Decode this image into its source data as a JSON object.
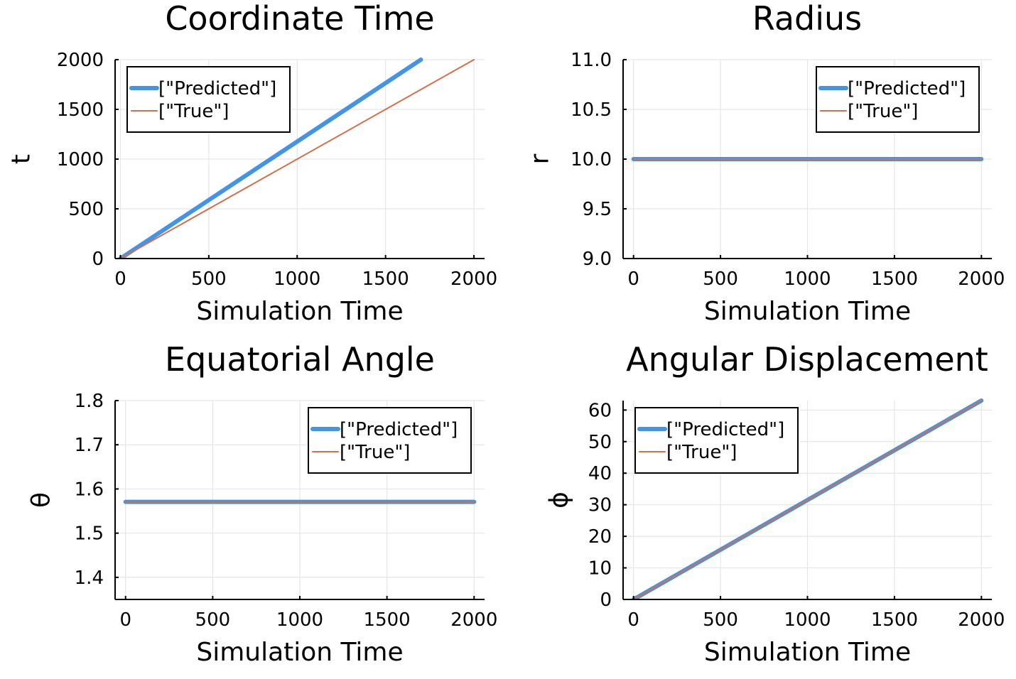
{
  "chart_data": [
    {
      "type": "line",
      "title": "Coordinate Time",
      "xlabel": "Simulation Time",
      "ylabel": "t",
      "xlim": [
        -30,
        2060
      ],
      "ylim": [
        0,
        2000
      ],
      "xticks": [
        0,
        500,
        1000,
        1500,
        2000
      ],
      "xtick_labels": [
        "0",
        "500",
        "1000",
        "1500",
        "2000"
      ],
      "yticks": [
        0,
        500,
        1000,
        1500,
        2000
      ],
      "ytick_labels": [
        "0",
        "500",
        "1000",
        "1500",
        "2000"
      ],
      "grid": true,
      "legend": "top-left",
      "series": [
        {
          "name": "[\"Predicted\"]",
          "color": "#4393e8",
          "width": "thick",
          "x": [
            0,
            1700
          ],
          "y": [
            0,
            2000
          ]
        },
        {
          "name": "[\"True\"]",
          "color": "#d2704a",
          "width": "thin",
          "x": [
            0,
            2000
          ],
          "y": [
            0,
            2000
          ]
        }
      ]
    },
    {
      "type": "line",
      "title": "Radius",
      "xlabel": "Simulation Time",
      "ylabel": "r",
      "xlim": [
        -60,
        2060
      ],
      "ylim": [
        9.0,
        11.0
      ],
      "xticks": [
        0,
        500,
        1000,
        1500,
        2000
      ],
      "xtick_labels": [
        "0",
        "500",
        "1000",
        "1500",
        "2000"
      ],
      "yticks": [
        9.0,
        9.5,
        10.0,
        10.5,
        11.0
      ],
      "ytick_labels": [
        "9.0",
        "9.5",
        "10.0",
        "10.5",
        "11.0"
      ],
      "grid": true,
      "legend": "top-right",
      "series": [
        {
          "name": "[\"Predicted\"]",
          "color": "#4393e8",
          "width": "thick",
          "x": [
            0,
            2000
          ],
          "y": [
            10.0,
            10.0
          ]
        },
        {
          "name": "[\"True\"]",
          "color": "#d2704a",
          "width": "thin",
          "x": [
            0,
            2000
          ],
          "y": [
            10.0,
            10.0
          ]
        }
      ]
    },
    {
      "type": "line",
      "title": "Equatorial Angle",
      "xlabel": "Simulation Time",
      "ylabel": "θ",
      "xlim": [
        -60,
        2060
      ],
      "ylim": [
        1.35,
        1.8
      ],
      "xticks": [
        0,
        500,
        1000,
        1500,
        2000
      ],
      "xtick_labels": [
        "0",
        "500",
        "1000",
        "1500",
        "2000"
      ],
      "yticks": [
        1.4,
        1.5,
        1.6,
        1.7,
        1.8
      ],
      "ytick_labels": [
        "1.4",
        "1.5",
        "1.6",
        "1.7",
        "1.8"
      ],
      "grid": true,
      "legend": "top-right",
      "series": [
        {
          "name": "[\"Predicted\"]",
          "color": "#4393e8",
          "width": "thick",
          "x": [
            0,
            2000
          ],
          "y": [
            1.5708,
            1.5708
          ]
        },
        {
          "name": "[\"True\"]",
          "color": "#d2704a",
          "width": "thin",
          "x": [
            0,
            2000
          ],
          "y": [
            1.5708,
            1.5708
          ]
        }
      ]
    },
    {
      "type": "line",
      "title": "Angular Displacement",
      "xlabel": "Simulation Time",
      "ylabel": "ϕ",
      "xlim": [
        -60,
        2060
      ],
      "ylim": [
        0,
        63
      ],
      "xticks": [
        0,
        500,
        1000,
        1500,
        2000
      ],
      "xtick_labels": [
        "0",
        "500",
        "1000",
        "1500",
        "2000"
      ],
      "yticks": [
        0,
        10,
        20,
        30,
        40,
        50,
        60
      ],
      "ytick_labels": [
        "0",
        "10",
        "20",
        "30",
        "40",
        "50",
        "60"
      ],
      "grid": true,
      "legend": "top-left",
      "series": [
        {
          "name": "[\"Predicted\"]",
          "color": "#4393e8",
          "width": "thick",
          "x": [
            0,
            2000
          ],
          "y": [
            0,
            63
          ]
        },
        {
          "name": "[\"True\"]",
          "color": "#d2704a",
          "width": "thin",
          "x": [
            0,
            2000
          ],
          "y": [
            0,
            63
          ]
        }
      ]
    }
  ]
}
